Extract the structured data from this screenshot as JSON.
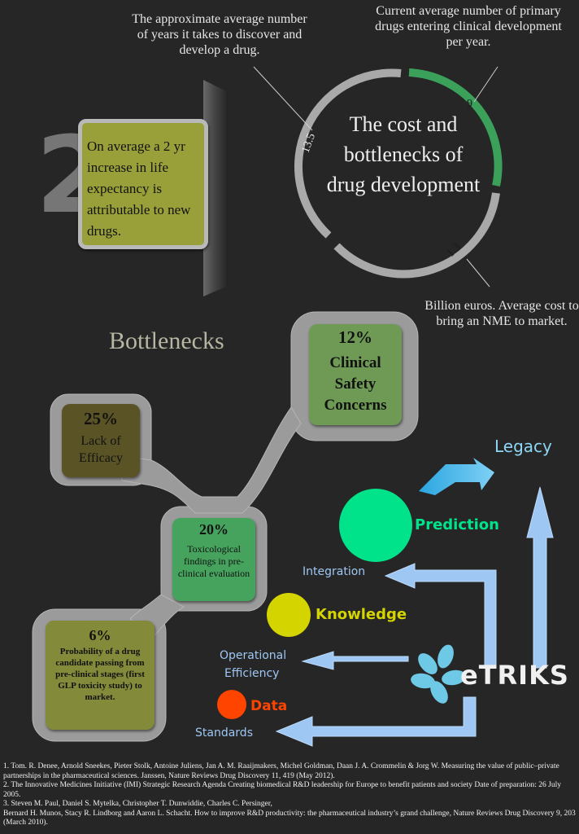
{
  "top": {
    "years_caption": "The approximate average number of years it takes to discover and develop a drug.",
    "drugs_caption": "Current average number of primary drugs entering clinical development per year.",
    "cost_caption": "Billion euros. Average cost to bring an NME to market.",
    "ring_title": "The cost and bottlenecks of drug development",
    "ring_values": {
      "years": "13.5",
      "drugs": "9",
      "cost": "1.3"
    },
    "life_number": "2",
    "life_text": "On average a 2 yr increase in life expectancy is attributable to new drugs."
  },
  "bottlenecks": {
    "heading": "Bottlenecks",
    "clinical_pct": "12%",
    "clinical_label": "Clinical Safety Concerns",
    "efficacy_pct": "25%",
    "efficacy_label": "Lack of Efficacy",
    "tox_pct": "20%",
    "tox_label": "Toxicological findings in pre-clinical evaluation",
    "prob_pct": "6%",
    "prob_label": "Probability of a drug candidate passing from pre-clinical stages (first GLP toxicity study) to market."
  },
  "etriks": {
    "logo_text": "eTRIKS",
    "legacy": "Legacy",
    "prediction": "Prediction",
    "integration": "Integration",
    "knowledge": "Knowledge",
    "operational": "Operational",
    "efficiency": "Efficiency",
    "data": "Data",
    "standards": "Standards"
  },
  "references": {
    "ref1": "1. Tom. R. Denee, Arnold Sneekes, Pieter Stolk, Antoine Juliens, Jan A. M. Raaijmakers, Michel Goldman, Daan J. A. Crommelin & Jorg W. Measuring the value of public–private partnerships in the pharmaceutical sciences. Janssen, Nature Reviews Drug Discovery 11, 419 (May 2012).",
    "ref2": "2. The Innovative Medicines Initiative (IMI) Strategic Research Agenda Creating biomedical R&D leadership for Europe to benefit patients and society Date of preparation: 26 July 2005.",
    "ref3a": "3. Steven M. Paul, Daniel S. Mytelka, Christopher T. Dunwiddie, Charles C. Persinger,",
    "ref3b": "Bernard H. Munos, Stacy R. Lindborg and Aaron L. Schacht. How to improve R&D productivity: the pharmaceutical industry’s grand challenge, Nature Reviews Drug Discovery 9, 203 (March 2010)."
  },
  "colors": {
    "background": "#262626",
    "ring_grey": "#a9a9a9",
    "ring_green": "#3ba15a",
    "olive": "#99a03a",
    "dark_olive": "#5a5325",
    "sage": "#6f9a55",
    "green": "#46a35e",
    "legacy_blue": "#8ed6f6",
    "prediction_green": "#00e38a",
    "knowledge_yellow": "#d4d400",
    "data_red": "#ff4400",
    "arrow_blue": "#9ec7f4"
  }
}
